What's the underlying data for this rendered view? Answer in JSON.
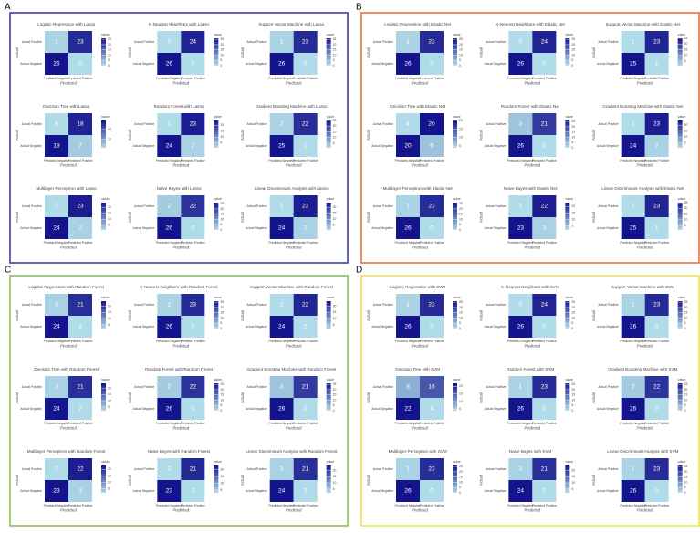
{
  "panels": [
    {
      "label": "A",
      "color": "#3c3fa6",
      "x_label": "Predicted",
      "y_label": "Actual",
      "x_categories": [
        "Predicted Negative",
        "Predicted Positive"
      ],
      "y_categories": [
        "Actual Positive",
        "Actual Negative"
      ],
      "legend_title": "value",
      "chart_data": [
        {
          "type": "heatmap",
          "title": "Logistic Regression with Lasso",
          "values": [
            [
              1,
              23
            ],
            [
              26,
              0
            ]
          ],
          "clim": [
            0,
            26
          ],
          "cticks": [
            0,
            5,
            10,
            15,
            20,
            25
          ]
        },
        {
          "type": "heatmap",
          "title": "K-Nearest Neighbors with Lasso",
          "values": [
            [
              0,
              24
            ],
            [
              26,
              0
            ]
          ],
          "clim": [
            0,
            26
          ],
          "cticks": [
            0,
            5,
            10,
            15,
            20,
            25
          ]
        },
        {
          "type": "heatmap",
          "title": "Support Vector Machine with Lasso",
          "values": [
            [
              1,
              23
            ],
            [
              26,
              0
            ]
          ],
          "clim": [
            0,
            26
          ],
          "cticks": [
            0,
            5,
            10,
            15,
            20,
            25
          ]
        },
        {
          "type": "heatmap",
          "title": "Decision Tree with Lasso",
          "values": [
            [
              6,
              18
            ],
            [
              19,
              7
            ]
          ],
          "clim": [
            6,
            19
          ],
          "cticks": [
            10,
            15
          ]
        },
        {
          "type": "heatmap",
          "title": "Random Forest with Lasso",
          "values": [
            [
              1,
              23
            ],
            [
              24,
              2
            ]
          ],
          "clim": [
            1,
            24
          ],
          "cticks": [
            5,
            10,
            15,
            20
          ]
        },
        {
          "type": "heatmap",
          "title": "Gradient Boosting Machine with Lasso",
          "values": [
            [
              2,
              22
            ],
            [
              25,
              1
            ]
          ],
          "clim": [
            1,
            25
          ],
          "cticks": [
            5,
            10,
            15,
            20,
            25
          ]
        },
        {
          "type": "heatmap",
          "title": "Multilayer Perceptron with Lasso",
          "values": [
            [
              1,
              23
            ],
            [
              24,
              2
            ]
          ],
          "clim": [
            1,
            24
          ],
          "cticks": [
            5,
            10,
            15,
            20
          ]
        },
        {
          "type": "heatmap",
          "title": "Naive Bayes with Lasso",
          "values": [
            [
              2,
              22
            ],
            [
              26,
              0
            ]
          ],
          "clim": [
            0,
            26
          ],
          "cticks": [
            0,
            5,
            10,
            15,
            20,
            25
          ]
        },
        {
          "type": "heatmap",
          "title": "Linear Discriminant Analysis with Lasso",
          "values": [
            [
              1,
              23
            ],
            [
              24,
              2
            ]
          ],
          "clim": [
            1,
            24
          ],
          "cticks": [
            5,
            10,
            15,
            20
          ]
        }
      ]
    },
    {
      "label": "B",
      "color": "#e8753c",
      "x_label": "Predicted",
      "y_label": "Actual",
      "x_categories": [
        "Predicted Negative",
        "Predicted Positive"
      ],
      "y_categories": [
        "Actual Positive",
        "Actual Negative"
      ],
      "legend_title": "value",
      "chart_data": [
        {
          "type": "heatmap",
          "title": "Logistic Regression with Elastic Net",
          "values": [
            [
              1,
              23
            ],
            [
              26,
              0
            ]
          ],
          "clim": [
            0,
            26
          ],
          "cticks": [
            0,
            5,
            10,
            15,
            20,
            25
          ]
        },
        {
          "type": "heatmap",
          "title": "K-Nearest Neighbors with Elastic Net",
          "values": [
            [
              0,
              24
            ],
            [
              26,
              0
            ]
          ],
          "clim": [
            0,
            26
          ],
          "cticks": [
            0,
            5,
            10,
            15,
            20,
            25
          ]
        },
        {
          "type": "heatmap",
          "title": "Support Vector Machine with Elastic Net",
          "values": [
            [
              1,
              23
            ],
            [
              25,
              1
            ]
          ],
          "clim": [
            1,
            25
          ],
          "cticks": [
            5,
            10,
            15,
            20,
            25
          ]
        },
        {
          "type": "heatmap",
          "title": "Decision Tree with Elastic Net",
          "values": [
            [
              4,
              20
            ],
            [
              20,
              6
            ]
          ],
          "clim": [
            4,
            20
          ],
          "cticks": [
            5,
            10,
            15,
            20
          ]
        },
        {
          "type": "heatmap",
          "title": "Random Forest with Elastic Net",
          "values": [
            [
              3,
              21
            ],
            [
              26,
              0
            ]
          ],
          "clim": [
            0,
            26
          ],
          "cticks": [
            0,
            5,
            10,
            15,
            20,
            25
          ]
        },
        {
          "type": "heatmap",
          "title": "Gradient Boosting Machine with Elastic Net",
          "values": [
            [
              1,
              23
            ],
            [
              24,
              2
            ]
          ],
          "clim": [
            1,
            24
          ],
          "cticks": [
            5,
            10,
            15,
            20
          ]
        },
        {
          "type": "heatmap",
          "title": "Multilayer Perceptron with Elastic Net",
          "values": [
            [
              1,
              23
            ],
            [
              26,
              0
            ]
          ],
          "clim": [
            0,
            26
          ],
          "cticks": [
            0,
            5,
            10,
            15,
            20,
            25
          ]
        },
        {
          "type": "heatmap",
          "title": "Naive Bayes with Elastic Net",
          "values": [
            [
              2,
              22
            ],
            [
              23,
              3
            ]
          ],
          "clim": [
            2,
            23
          ],
          "cticks": [
            5,
            10,
            15,
            20
          ]
        },
        {
          "type": "heatmap",
          "title": "Linear Discriminant Analysis with Elastic Net",
          "values": [
            [
              1,
              23
            ],
            [
              25,
              1
            ]
          ],
          "clim": [
            1,
            25
          ],
          "cticks": [
            5,
            10,
            15,
            20,
            25
          ]
        }
      ]
    },
    {
      "label": "C",
      "color": "#8cc24c",
      "x_label": "Predicted",
      "y_label": "Actual",
      "x_categories": [
        "Predicted Negative",
        "Predicted Positive"
      ],
      "y_categories": [
        "Actual Positive",
        "Actual Negative"
      ],
      "legend_title": "value",
      "chart_data": [
        {
          "type": "heatmap",
          "title": "Logistic Regression with Random Forest",
          "values": [
            [
              3,
              21
            ],
            [
              24,
              2
            ]
          ],
          "clim": [
            2,
            24
          ],
          "cticks": [
            5,
            10,
            15,
            20
          ]
        },
        {
          "type": "heatmap",
          "title": "K-Nearest Neighbors with Random Forest",
          "values": [
            [
              1,
              23
            ],
            [
              26,
              0
            ]
          ],
          "clim": [
            0,
            26
          ],
          "cticks": [
            0,
            5,
            10,
            15,
            20,
            25
          ]
        },
        {
          "type": "heatmap",
          "title": "Support Vector Machine with Random Forest",
          "values": [
            [
              2,
              22
            ],
            [
              24,
              2
            ]
          ],
          "clim": [
            2,
            24
          ],
          "cticks": [
            5,
            10,
            15,
            20
          ]
        },
        {
          "type": "heatmap",
          "title": "Decision Tree with Random Forest",
          "values": [
            [
              3,
              21
            ],
            [
              24,
              2
            ]
          ],
          "clim": [
            2,
            24
          ],
          "cticks": [
            5,
            10,
            15,
            20
          ]
        },
        {
          "type": "heatmap",
          "title": "Random Forest with Random Forest",
          "values": [
            [
              2,
              22
            ],
            [
              26,
              0
            ]
          ],
          "clim": [
            0,
            26
          ],
          "cticks": [
            0,
            5,
            10,
            15,
            20,
            25
          ]
        },
        {
          "type": "heatmap",
          "title": "Gradient Boosting Machine with Random Forest",
          "values": [
            [
              3,
              21
            ],
            [
              26,
              0
            ]
          ],
          "clim": [
            0,
            26
          ],
          "cticks": [
            0,
            5,
            10,
            15,
            20,
            25
          ]
        },
        {
          "type": "heatmap",
          "title": "Multilayer Perceptron with Random Forest",
          "values": [
            [
              2,
              22
            ],
            [
              23,
              3
            ]
          ],
          "clim": [
            2,
            23
          ],
          "cticks": [
            5,
            10,
            15,
            20
          ]
        },
        {
          "type": "heatmap",
          "title": "Naive Bayes with Random Forest",
          "values": [
            [
              3,
              21
            ],
            [
              23,
              3
            ]
          ],
          "clim": [
            3,
            23
          ],
          "cticks": [
            5,
            10,
            15,
            20
          ]
        },
        {
          "type": "heatmap",
          "title": "Linear Discriminant Analysis with Random Forest",
          "values": [
            [
              3,
              21
            ],
            [
              24,
              2
            ]
          ],
          "clim": [
            2,
            24
          ],
          "cticks": [
            5,
            10,
            15,
            20
          ]
        }
      ]
    },
    {
      "label": "D",
      "color": "#efe24a",
      "x_label": "Predicted",
      "y_label": "Actual",
      "x_categories": [
        "Predicted Negative",
        "Predicted Positive"
      ],
      "y_categories": [
        "Actual Positive",
        "Actual Negative"
      ],
      "legend_title": "value",
      "chart_data": [
        {
          "type": "heatmap",
          "title": "Logistic Regression with SVM",
          "values": [
            [
              1,
              23
            ],
            [
              26,
              0
            ]
          ],
          "clim": [
            0,
            26
          ],
          "cticks": [
            0,
            5,
            10,
            15,
            20,
            25
          ]
        },
        {
          "type": "heatmap",
          "title": "K-Nearest Neighbors with SVM",
          "values": [
            [
              0,
              24
            ],
            [
              26,
              0
            ]
          ],
          "clim": [
            0,
            26
          ],
          "cticks": [
            0,
            5,
            10,
            15,
            20,
            25
          ]
        },
        {
          "type": "heatmap",
          "title": "Support Vector Machine with SVM",
          "values": [
            [
              1,
              23
            ],
            [
              26,
              0
            ]
          ],
          "clim": [
            0,
            26
          ],
          "cticks": [
            0,
            5,
            10,
            15,
            20,
            25
          ]
        },
        {
          "type": "heatmap",
          "title": "Decision Tree with SVM",
          "values": [
            [
              8,
              16
            ],
            [
              22,
              4
            ]
          ],
          "clim": [
            4,
            22
          ],
          "cticks": [
            5,
            10,
            15,
            20
          ]
        },
        {
          "type": "heatmap",
          "title": "Random Forest with SVM",
          "values": [
            [
              1,
              23
            ],
            [
              26,
              0
            ]
          ],
          "clim": [
            0,
            26
          ],
          "cticks": [
            0,
            5,
            10,
            15,
            20,
            25
          ]
        },
        {
          "type": "heatmap",
          "title": "Gradient Boosting Machine with SVM",
          "values": [
            [
              2,
              22
            ],
            [
              26,
              0
            ]
          ],
          "clim": [
            0,
            26
          ],
          "cticks": [
            0,
            5,
            10,
            15,
            20,
            25
          ]
        },
        {
          "type": "heatmap",
          "title": "Multilayer Perceptron with SVM",
          "values": [
            [
              1,
              23
            ],
            [
              26,
              0
            ]
          ],
          "clim": [
            0,
            26
          ],
          "cticks": [
            0,
            5,
            10,
            15,
            20,
            25
          ]
        },
        {
          "type": "heatmap",
          "title": "Naive Bayes with SVM",
          "values": [
            [
              3,
              21
            ],
            [
              24,
              2
            ]
          ],
          "clim": [
            2,
            24
          ],
          "cticks": [
            5,
            10,
            15,
            20
          ]
        },
        {
          "type": "heatmap",
          "title": "Linear Discriminant Analysis with SVM",
          "values": [
            [
              1,
              23
            ],
            [
              26,
              0
            ]
          ],
          "clim": [
            0,
            26
          ],
          "cticks": [
            0,
            5,
            10,
            15,
            20,
            25
          ]
        }
      ]
    }
  ]
}
